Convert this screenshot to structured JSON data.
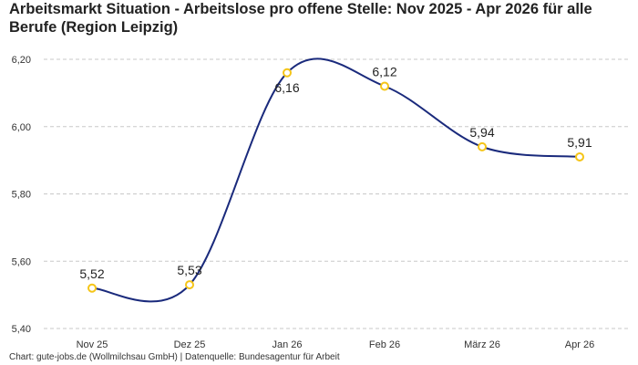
{
  "chart_data": {
    "type": "line",
    "title": "Arbeitsmarkt Situation - Arbeitslose pro offene Stelle: Nov 2025 - Apr 2026 für alle Berufe (Region Leipzig)",
    "categories": [
      "Nov 25",
      "Dez 25",
      "Jan 26",
      "Feb 26",
      "März 26",
      "Apr 26"
    ],
    "series": [
      {
        "values": [
          5.52,
          5.53,
          6.16,
          6.12,
          5.94,
          5.91
        ],
        "labels": [
          "5,52",
          "5,53",
          "6,16",
          "6,12",
          "5,94",
          "5,91"
        ]
      }
    ],
    "yticks": [
      5.4,
      5.6,
      5.8,
      6.0,
      6.2
    ],
    "ytick_labels": [
      "5,40",
      "5,60",
      "5,80",
      "6,00",
      "6,20"
    ],
    "ylim": [
      5.4,
      6.2
    ],
    "grid": true,
    "line_color": "#1a2a7c",
    "marker_color": "#f5c518",
    "grid_color": "#c8c8c8"
  },
  "footer": "Chart: gute-jobs.de (Wollmilchsau GmbH) | Datenquelle: Bundesagentur für Arbeit"
}
